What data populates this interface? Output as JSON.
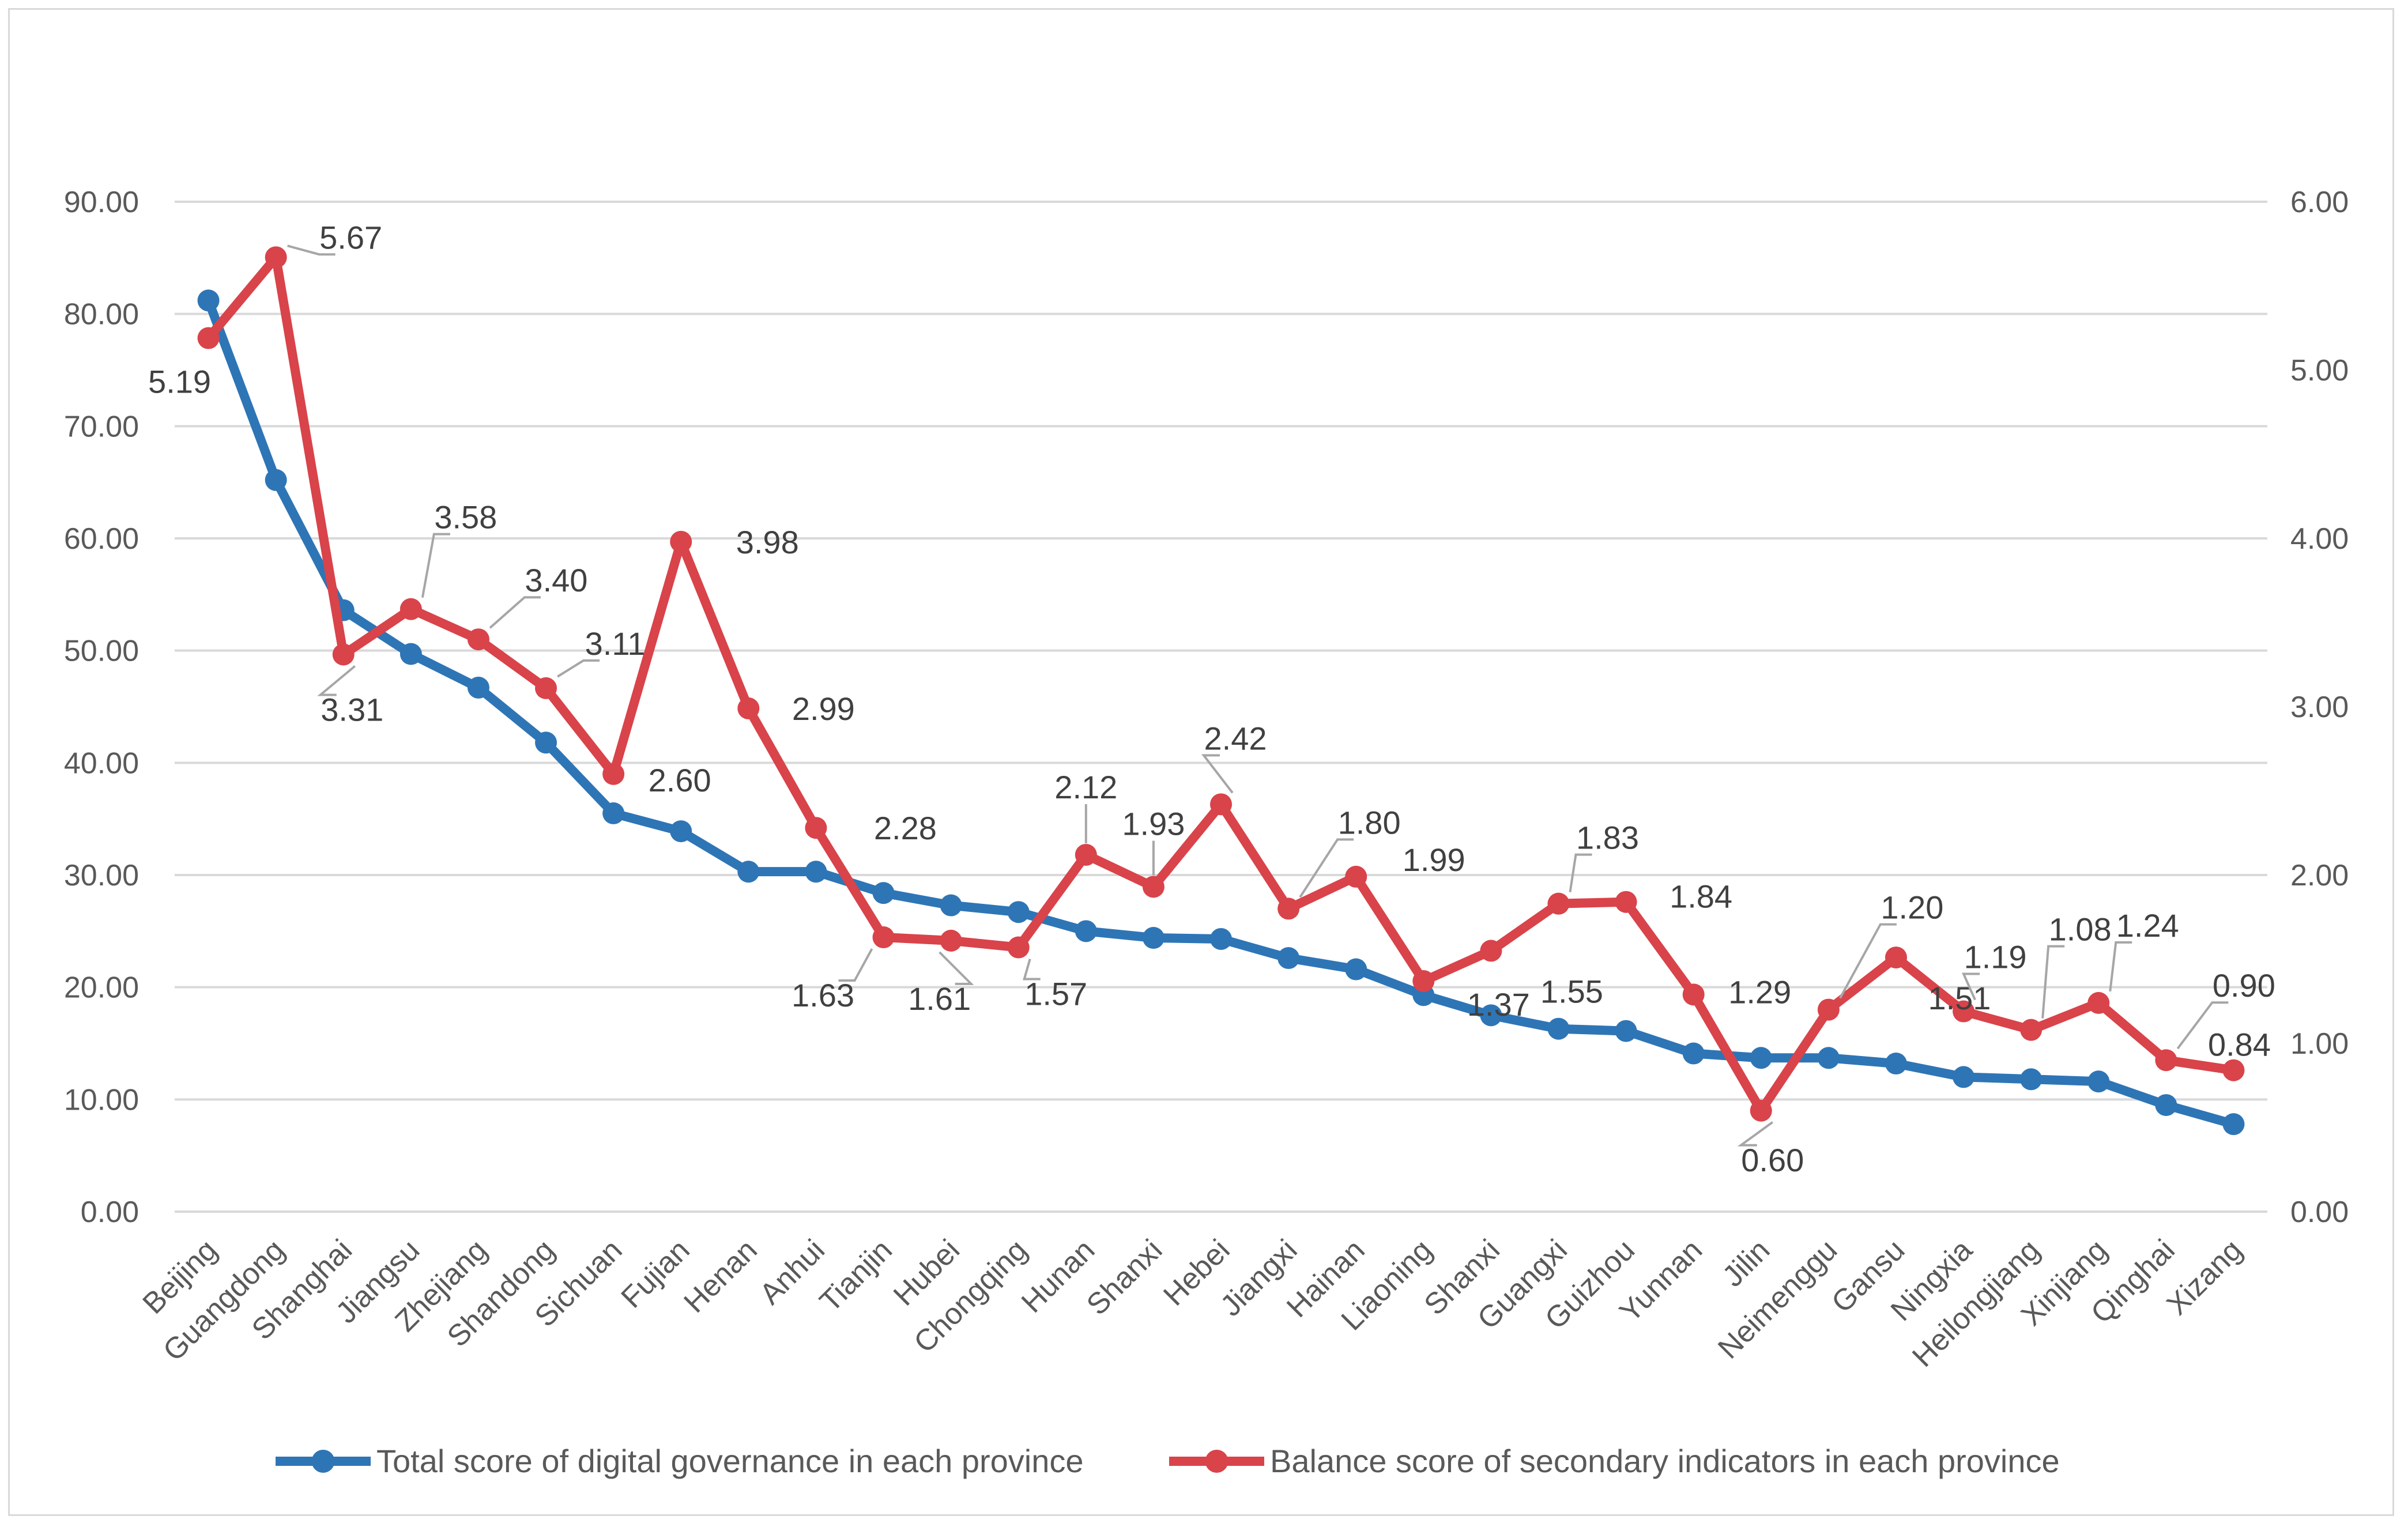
{
  "chart_data": {
    "type": "line",
    "categories": [
      "Beijing",
      "Guangdong",
      "Shanghai",
      "Jiangsu",
      "Zhejiang",
      "Shandong",
      "Sichuan",
      "Fujian",
      "Henan",
      "Anhui",
      "Tianjin",
      "Hubei",
      "Chongqing",
      "Hunan",
      "Shanxi",
      "Hebei",
      "Jiangxi",
      "Hainan",
      "Liaoning",
      "Shanxi",
      "Guangxi",
      "Guizhou",
      "Yunnan",
      "Jilin",
      "Neimenggu",
      "Gansu",
      "Ningxia",
      "Heilongjiang",
      "Xinjiang",
      "Qinghai",
      "Xizang"
    ],
    "y_axis_left": {
      "ylim": [
        0,
        90
      ],
      "ticks": [
        "0.00",
        "10.00",
        "20.00",
        "30.00",
        "40.00",
        "50.00",
        "60.00",
        "70.00",
        "80.00",
        "90.00"
      ]
    },
    "y_axis_right": {
      "ylim": [
        0,
        6
      ],
      "ticks": [
        "0.00",
        "1.00",
        "2.00",
        "3.00",
        "4.00",
        "5.00",
        "6.00"
      ]
    },
    "series": [
      {
        "name": "Total score of digital governance in each province",
        "axis": "left",
        "color": "#2e75b6",
        "values": [
          81.2,
          65.2,
          53.6,
          49.7,
          46.7,
          41.8,
          35.5,
          33.9,
          30.3,
          30.3,
          28.4,
          27.3,
          26.7,
          25.0,
          24.4,
          24.3,
          22.6,
          21.6,
          19.3,
          17.5,
          16.3,
          16.1,
          14.1,
          13.7,
          13.7,
          13.2,
          12.0,
          11.8,
          11.6,
          9.5,
          7.8
        ]
      },
      {
        "name": "Balance score of secondary indicators in each province",
        "axis": "right",
        "color": "#d9434a",
        "values": [
          5.19,
          5.67,
          3.31,
          3.58,
          3.4,
          3.11,
          2.6,
          3.98,
          2.99,
          2.28,
          1.63,
          1.61,
          1.57,
          2.12,
          1.93,
          2.42,
          1.8,
          1.99,
          1.37,
          1.55,
          1.83,
          1.84,
          1.29,
          0.6,
          1.2,
          1.51,
          1.19,
          1.08,
          1.24,
          0.9,
          0.84
        ],
        "labels": [
          "5.19",
          "5.67",
          "3.31",
          "3.58",
          "3.40",
          "3.11",
          "2.60",
          "3.98",
          "2.99",
          "2.28",
          "1.63",
          "1.61",
          "1.57",
          "2.12",
          "1.93",
          "2.42",
          "1.80",
          "1.99",
          "1.37",
          "1.55",
          "1.83",
          "1.84",
          "1.29",
          "0.60",
          "1.20",
          "1.51",
          "1.19",
          "1.08",
          "1.24",
          "0.90",
          "0.84"
        ]
      }
    ],
    "grid": true,
    "legend_position": "bottom"
  }
}
